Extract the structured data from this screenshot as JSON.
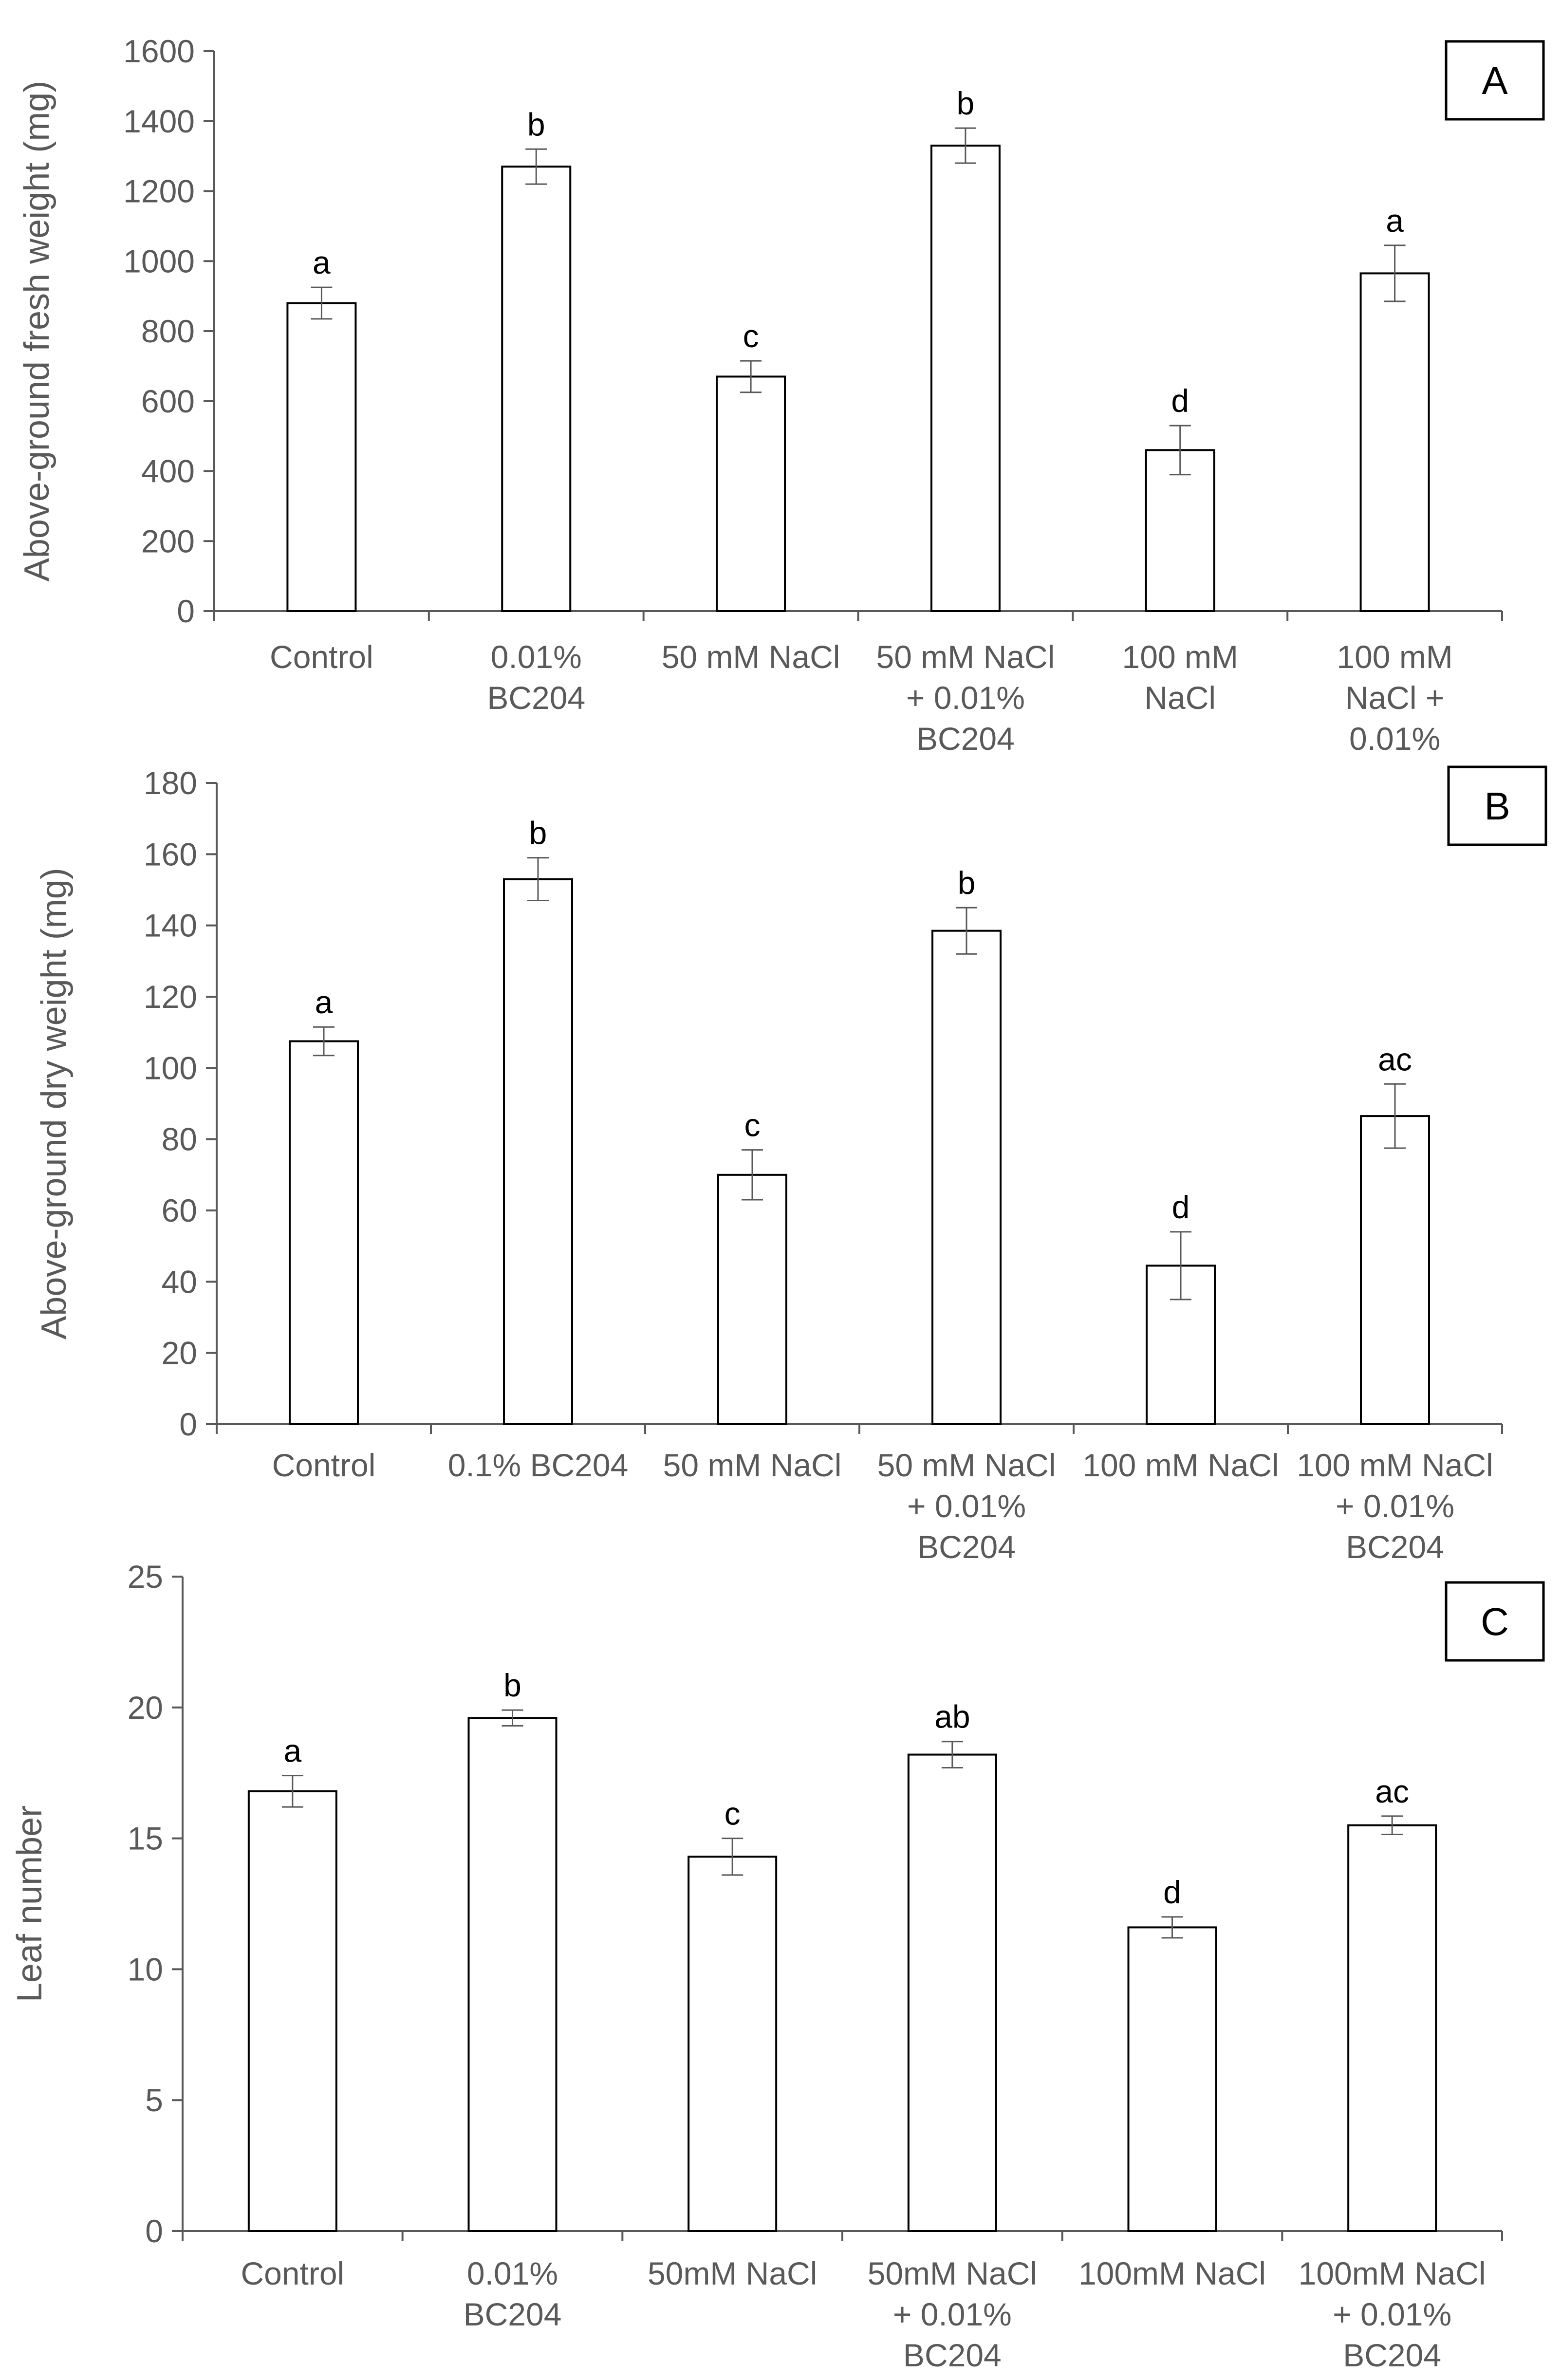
{
  "chart_data": [
    {
      "type": "bar",
      "panel_label": "A",
      "ylabel": "Above-ground fresh weight (mg)",
      "xlabel": "",
      "ylim": [
        0,
        1600
      ],
      "yticks": [
        0,
        200,
        400,
        600,
        800,
        1000,
        1200,
        1400,
        1600
      ],
      "categories": [
        [
          "Control"
        ],
        [
          "0.01%",
          "BC204"
        ],
        [
          "50 mM NaCl"
        ],
        [
          "50 mM NaCl",
          "+ 0.01%",
          "BC204"
        ],
        [
          "100 mM",
          "NaCl"
        ],
        [
          "100 mM",
          "NaCl +",
          "0.01%"
        ]
      ],
      "values": [
        880,
        1270,
        670,
        1330,
        460,
        965
      ],
      "errors": [
        45,
        50,
        45,
        50,
        70,
        80
      ],
      "significance": [
        "a",
        "b",
        "c",
        "b",
        "d",
        "a"
      ]
    },
    {
      "type": "bar",
      "panel_label": "B",
      "ylabel": "Above-ground dry weight (mg)",
      "xlabel": "",
      "ylim": [
        0,
        180
      ],
      "yticks": [
        0,
        20,
        40,
        60,
        80,
        100,
        120,
        140,
        160,
        180
      ],
      "categories": [
        [
          "Control"
        ],
        [
          "0.1% BC204"
        ],
        [
          "50 mM NaCl"
        ],
        [
          "50 mM NaCl",
          "+ 0.01%",
          "BC204"
        ],
        [
          "100 mM NaCl"
        ],
        [
          "100 mM NaCl",
          "+ 0.01%",
          "BC204"
        ]
      ],
      "values": [
        107.5,
        153,
        70,
        138.5,
        44.5,
        86.5
      ],
      "errors": [
        4,
        6,
        7,
        6.5,
        9.5,
        9
      ],
      "significance": [
        "a",
        "b",
        "c",
        "b",
        "d",
        "ac"
      ]
    },
    {
      "type": "bar",
      "panel_label": "C",
      "ylabel": "Leaf number",
      "xlabel": "",
      "ylim": [
        0,
        25
      ],
      "yticks": [
        0,
        5,
        10,
        15,
        20,
        25
      ],
      "categories": [
        [
          "Control"
        ],
        [
          "0.01%",
          "BC204"
        ],
        [
          "50mM NaCl"
        ],
        [
          "50mM NaCl",
          "+ 0.01%",
          "BC204"
        ],
        [
          "100mM NaCl"
        ],
        [
          "100mM NaCl",
          "+ 0.01%",
          "BC204"
        ]
      ],
      "values": [
        16.8,
        19.6,
        14.3,
        18.2,
        11.6,
        15.5
      ],
      "errors": [
        0.6,
        0.3,
        0.7,
        0.5,
        0.4,
        0.35
      ],
      "significance": [
        "a",
        "b",
        "c",
        "ab",
        "d",
        "ac"
      ]
    }
  ]
}
